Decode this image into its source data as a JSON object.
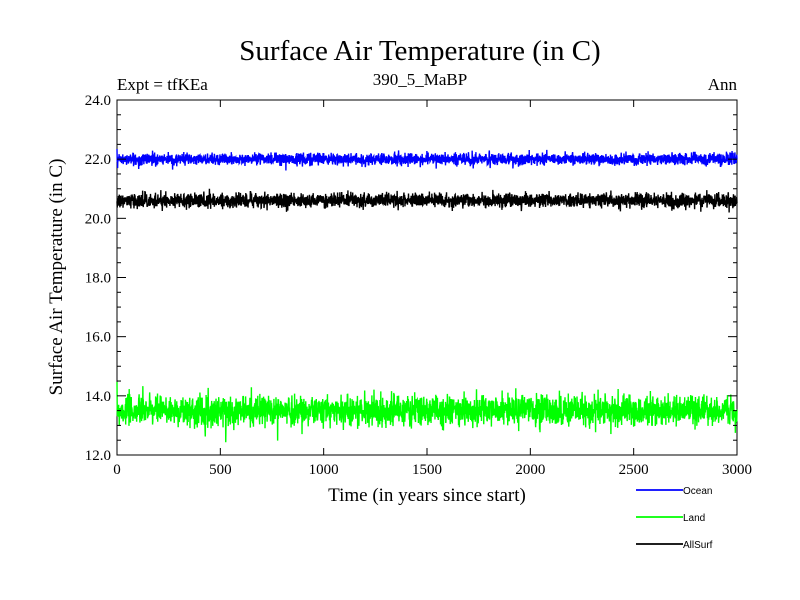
{
  "chart_data": {
    "type": "line",
    "title": "Surface Air Temperature (in C)",
    "subtitle_left": "Expt = tfKEa",
    "subtitle_center": "390_5_MaBP",
    "subtitle_right": "Ann",
    "xlabel": "Time (in years since start)",
    "ylabel": "Surface Air Temperature (in C)",
    "xlim": [
      0,
      3000
    ],
    "ylim": [
      12.0,
      24.0
    ],
    "xticks": [
      0,
      500,
      1000,
      1500,
      2000,
      2500,
      3000
    ],
    "xtick_labels": [
      "0",
      "500",
      "1000",
      "1500",
      "2000",
      "2500",
      "3000"
    ],
    "yticks": [
      12.0,
      14.0,
      16.0,
      18.0,
      20.0,
      22.0,
      24.0
    ],
    "ytick_labels": [
      "12.0",
      "14.0",
      "16.0",
      "18.0",
      "20.0",
      "22.0",
      "24.0"
    ],
    "grid": false,
    "legend_position": "bottom-right",
    "series": [
      {
        "name": "Ocean",
        "color": "#0000ff",
        "mean": 22.0,
        "noise": 0.1,
        "n_points": 3000
      },
      {
        "name": "Land",
        "color": "#00ff00",
        "mean": 13.5,
        "noise": 0.25,
        "n_points": 3000
      },
      {
        "name": "AllSurf",
        "color": "#000000",
        "mean": 20.6,
        "noise": 0.12,
        "n_points": 3000
      }
    ]
  }
}
